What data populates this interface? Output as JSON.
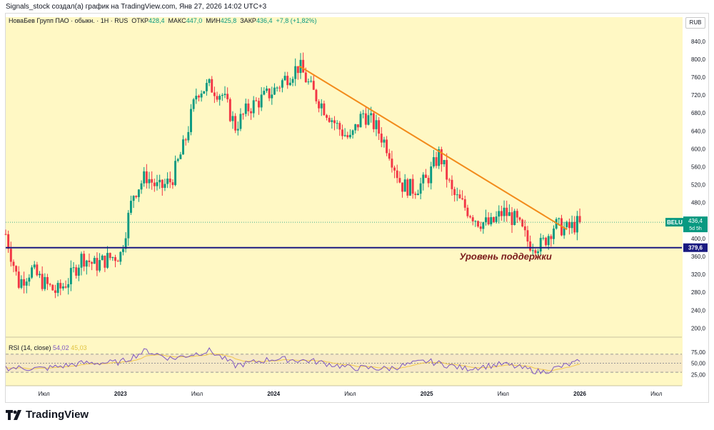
{
  "header": {
    "credit": "Signals_stock создал(а) график на TradingView.com, Янв 27, 2026 14:02 UTC+3"
  },
  "legend": {
    "symbol": "НоваБев Групп ПАО · обыкн. · 1Н · RUS",
    "open_label": "ОТКР",
    "open": "428,4",
    "high_label": "МАКС",
    "high": "447,0",
    "low_label": "МИН",
    "low": "425,8",
    "close_label": "ЗАКР",
    "close": "436,4",
    "change": "+7,8 (+1,82%)"
  },
  "currency": "RUB",
  "price_axis": {
    "ticks": [
      "840,0",
      "800,0",
      "760,0",
      "720,0",
      "680,0",
      "640,0",
      "600,0",
      "560,0",
      "520,0",
      "480,0",
      "400,0",
      "360,0",
      "320,0",
      "280,0",
      "240,0",
      "200,0"
    ],
    "last_ticker": "BELU",
    "last_price": "436,4",
    "countdown": "5d 5h",
    "support_price": "379,6"
  },
  "time_axis": {
    "labels": [
      "Июл",
      "2023",
      "Июл",
      "2024",
      "Июл",
      "2025",
      "Июл",
      "2026",
      "Июл"
    ]
  },
  "annotations": {
    "support_label": "Уровень поддержки"
  },
  "rsi": {
    "title": "RSI (14, close)",
    "rsi_value": "54,02",
    "ma_value": "45,03",
    "ticks": [
      "75,00",
      "50,00",
      "25,00"
    ]
  },
  "colors": {
    "background": "#fff8c4",
    "rsi_band": "#f6e9c6",
    "up": "#089981",
    "down": "#f23645",
    "trendline": "#f28b1b",
    "support": "#1a1a80",
    "rsi_line": "#7e57c2",
    "rsi_ma": "#f2c94c"
  },
  "footer": {
    "brand": "TradingView"
  },
  "chart_data": {
    "type": "candlestick",
    "title": "НоваБев Групп ПАО · обыкн. · 1Н · RUS",
    "ylim": [
      180,
      870
    ],
    "x_start": "2022-04",
    "x_end": "2026-09",
    "close_path": [
      {
        "t": "2022-04",
        "v": 410
      },
      {
        "t": "2022-05",
        "v": 300
      },
      {
        "t": "2022-06",
        "v": 330
      },
      {
        "t": "2022-07",
        "v": 300
      },
      {
        "t": "2022-08",
        "v": 280
      },
      {
        "t": "2022-09",
        "v": 310
      },
      {
        "t": "2022-10",
        "v": 360
      },
      {
        "t": "2022-11",
        "v": 340
      },
      {
        "t": "2022-12",
        "v": 355
      },
      {
        "t": "2023-01",
        "v": 365
      },
      {
        "t": "2023-02",
        "v": 500
      },
      {
        "t": "2023-03",
        "v": 540
      },
      {
        "t": "2023-04",
        "v": 510
      },
      {
        "t": "2023-05",
        "v": 530
      },
      {
        "t": "2023-06",
        "v": 610
      },
      {
        "t": "2023-07",
        "v": 730
      },
      {
        "t": "2023-08",
        "v": 740
      },
      {
        "t": "2023-09",
        "v": 720
      },
      {
        "t": "2023-10",
        "v": 650
      },
      {
        "t": "2023-11",
        "v": 690
      },
      {
        "t": "2023-12",
        "v": 710
      },
      {
        "t": "2024-01",
        "v": 730
      },
      {
        "t": "2024-02",
        "v": 760
      },
      {
        "t": "2024-03",
        "v": 785
      },
      {
        "t": "2024-04",
        "v": 730
      },
      {
        "t": "2024-05",
        "v": 690
      },
      {
        "t": "2024-06",
        "v": 650
      },
      {
        "t": "2024-07",
        "v": 620
      },
      {
        "t": "2024-08",
        "v": 680
      },
      {
        "t": "2024-09",
        "v": 650
      },
      {
        "t": "2024-10",
        "v": 600
      },
      {
        "t": "2024-11",
        "v": 520
      },
      {
        "t": "2024-12",
        "v": 510
      },
      {
        "t": "2025-01",
        "v": 530
      },
      {
        "t": "2025-02",
        "v": 590
      },
      {
        "t": "2025-03",
        "v": 500
      },
      {
        "t": "2025-04",
        "v": 470
      },
      {
        "t": "2025-05",
        "v": 440
      },
      {
        "t": "2025-06",
        "v": 430
      },
      {
        "t": "2025-07",
        "v": 460
      },
      {
        "t": "2025-08",
        "v": 440
      },
      {
        "t": "2025-09",
        "v": 390
      },
      {
        "t": "2025-10",
        "v": 385
      },
      {
        "t": "2025-11",
        "v": 430
      },
      {
        "t": "2025-12",
        "v": 420
      },
      {
        "t": "2026-01",
        "v": 436.4
      }
    ],
    "trendline": [
      {
        "t": "2024-03",
        "v": 785
      },
      {
        "t": "2025-12",
        "v": 420
      }
    ],
    "support_level": 379.6,
    "last_price": 436.4,
    "rsi": {
      "ylim": [
        0,
        100
      ],
      "levels": [
        70,
        50,
        30
      ],
      "path": [
        {
          "t": "2022-04",
          "v": 40
        },
        {
          "t": "2022-07",
          "v": 38
        },
        {
          "t": "2022-10",
          "v": 50
        },
        {
          "t": "2023-01",
          "v": 52
        },
        {
          "t": "2023-03",
          "v": 78
        },
        {
          "t": "2023-05",
          "v": 60
        },
        {
          "t": "2023-08",
          "v": 78
        },
        {
          "t": "2023-10",
          "v": 45
        },
        {
          "t": "2024-01",
          "v": 60
        },
        {
          "t": "2024-04",
          "v": 55
        },
        {
          "t": "2024-07",
          "v": 40
        },
        {
          "t": "2024-10",
          "v": 38
        },
        {
          "t": "2025-01",
          "v": 55
        },
        {
          "t": "2025-04",
          "v": 38
        },
        {
          "t": "2025-07",
          "v": 48
        },
        {
          "t": "2025-10",
          "v": 30
        },
        {
          "t": "2026-01",
          "v": 54.02
        }
      ]
    }
  }
}
